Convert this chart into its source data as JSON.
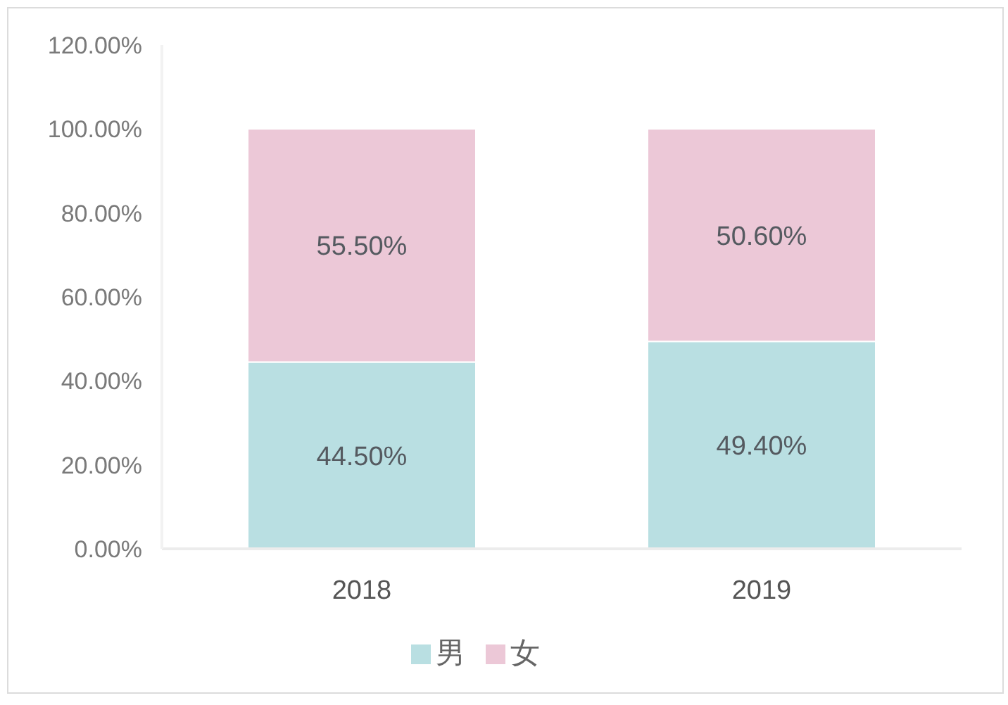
{
  "chart_data": {
    "type": "bar",
    "stacked": true,
    "categories": [
      "2018",
      "2019"
    ],
    "series": [
      {
        "name": "男",
        "color": "#b9dfe2",
        "values": [
          44.5,
          49.4
        ],
        "value_labels": [
          "44.50%",
          "49.40%"
        ]
      },
      {
        "name": "女",
        "color": "#ecc8d7",
        "values": [
          55.5,
          50.6
        ],
        "value_labels": [
          "55.50%",
          "50.60%"
        ]
      }
    ],
    "ylim": [
      0,
      120
    ],
    "yticks": [
      {
        "value": 0,
        "label": "0.00%"
      },
      {
        "value": 20,
        "label": "20.00%"
      },
      {
        "value": 40,
        "label": "40.00%"
      },
      {
        "value": 60,
        "label": "60.00%"
      },
      {
        "value": 80,
        "label": "80.00%"
      },
      {
        "value": 100,
        "label": "100.00%"
      },
      {
        "value": 120,
        "label": "120.00%"
      }
    ],
    "grid": false,
    "legend": "bottom"
  }
}
